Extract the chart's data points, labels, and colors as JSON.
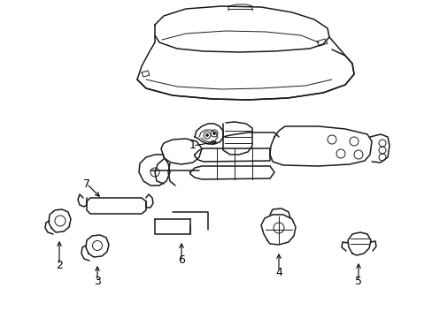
{
  "background_color": "#ffffff",
  "line_color": "#1a1a1a",
  "figsize": [
    4.89,
    3.6
  ],
  "dpi": 100,
  "seat_color": "#ffffff",
  "border_color": "#111111"
}
